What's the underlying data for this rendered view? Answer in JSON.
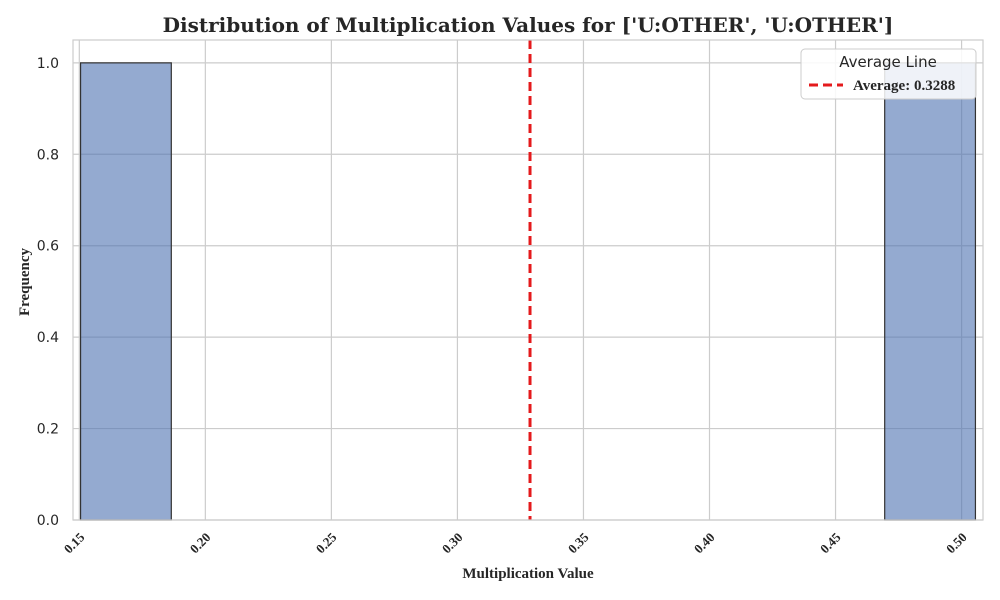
{
  "chart_data": {
    "type": "bar",
    "title": "Distribution of Multiplication Values for ['U:OTHER', 'U:OTHER']",
    "xlabel": "Multiplication Value",
    "ylabel": "Frequency",
    "xlim": [
      0.1475,
      0.5085
    ],
    "ylim": [
      0.0,
      1.05
    ],
    "grid": true,
    "x_ticks": [
      "0.15",
      "0.20",
      "0.25",
      "0.30",
      "0.35",
      "0.40",
      "0.45",
      "0.50"
    ],
    "x_tick_values": [
      0.15,
      0.2,
      0.25,
      0.3,
      0.35,
      0.4,
      0.45,
      0.5
    ],
    "y_ticks": [
      "0.0",
      "0.2",
      "0.4",
      "0.6",
      "0.8",
      "1.0"
    ],
    "y_tick_values": [
      0.0,
      0.2,
      0.4,
      0.6,
      0.8,
      1.0
    ],
    "bins": [
      {
        "x0": 0.1505,
        "x1": 0.1865,
        "value": 1
      },
      {
        "x0": 0.4695,
        "x1": 0.5055,
        "value": 1
      }
    ],
    "average": {
      "value": 0.3288,
      "label": "Average: 0.3288",
      "color": "#e41a1c"
    },
    "legend": {
      "title": "Average Line",
      "placement": "top-right"
    },
    "bar_color": "#4c72b0",
    "bar_edge_color": "#333333"
  }
}
